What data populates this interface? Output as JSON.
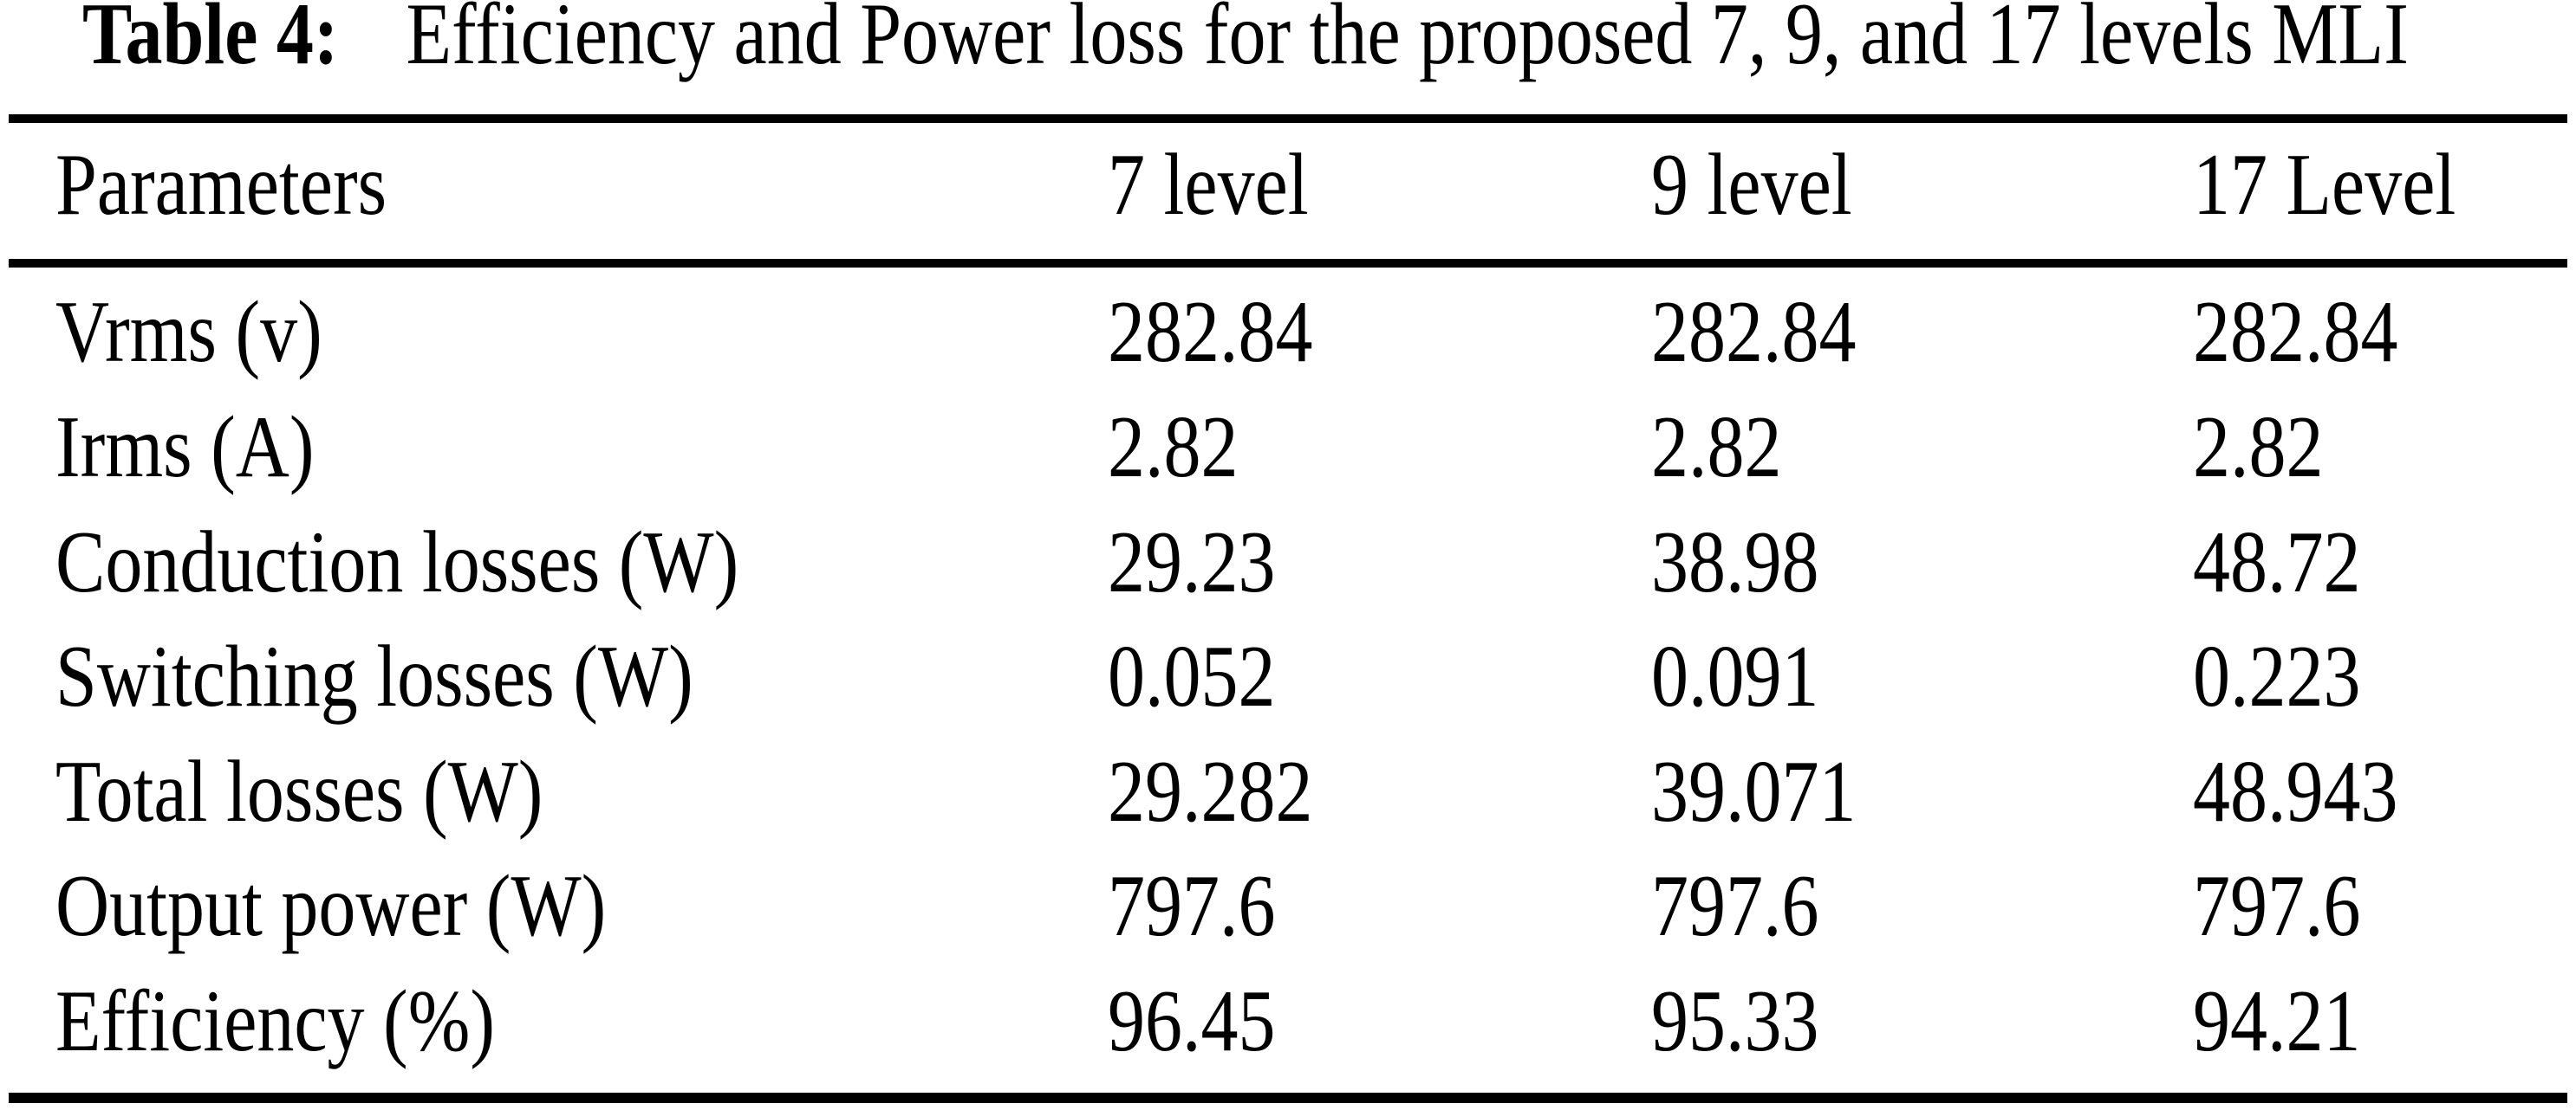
{
  "caption": {
    "label": "Table 4:",
    "text": "Efficiency and Power loss for the proposed 7, 9, and 17 levels MLI"
  },
  "table": {
    "columns": [
      "Parameters",
      "7 level",
      "9 level",
      "17 Level"
    ],
    "rows": [
      {
        "parameter": "Vrms (v)",
        "values": [
          "282.84",
          "282.84",
          "282.84"
        ]
      },
      {
        "parameter": "Irms (A)",
        "values": [
          "2.82",
          "2.82",
          "2.82"
        ]
      },
      {
        "parameter": "Conduction losses (W)",
        "values": [
          "29.23",
          "38.98",
          "48.72"
        ]
      },
      {
        "parameter": "Switching losses (W)",
        "values": [
          "0.052",
          "0.091",
          "0.223"
        ]
      },
      {
        "parameter": "Total losses (W)",
        "values": [
          "29.282",
          "39.071",
          "48.943"
        ]
      },
      {
        "parameter": "Output power (W)",
        "values": [
          "797.6",
          "797.6",
          "797.6"
        ]
      },
      {
        "parameter": "Efficiency (%)",
        "values": [
          "96.45",
          "95.33",
          "94.21"
        ]
      }
    ]
  },
  "colors": {
    "text": "#000000",
    "background": "#ffffff",
    "rule": "#000000"
  }
}
